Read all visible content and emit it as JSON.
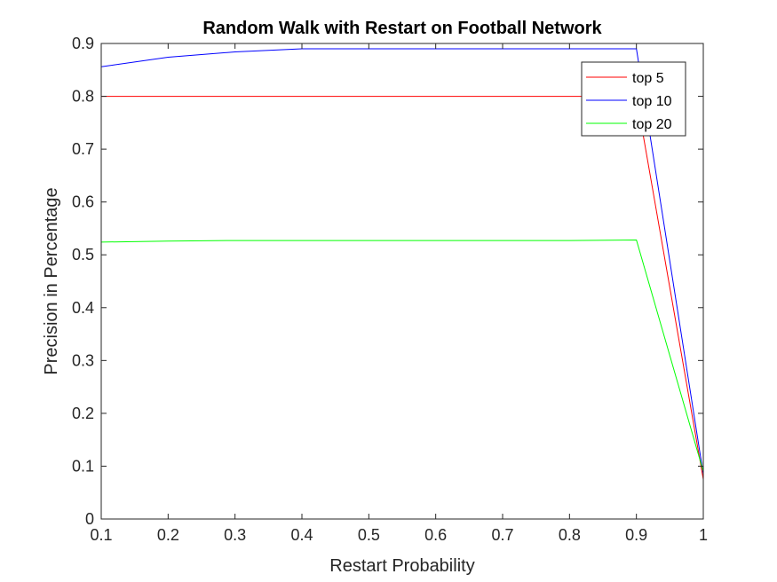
{
  "chart_data": {
    "type": "line",
    "title": "Random Walk with Restart on Football Network",
    "xlabel": "Restart Probability",
    "ylabel": "Precision in Percentage",
    "xlim": [
      0.1,
      1
    ],
    "ylim": [
      0,
      0.9
    ],
    "xticks": [
      "0.1",
      "0.2",
      "0.3",
      "0.4",
      "0.5",
      "0.6",
      "0.7",
      "0.8",
      "0.9",
      "1"
    ],
    "yticks": [
      "0",
      "0.1",
      "0.2",
      "0.3",
      "0.4",
      "0.5",
      "0.6",
      "0.7",
      "0.8",
      "0.9"
    ],
    "grid": false,
    "legend_position": "top-right",
    "x": [
      0.1,
      0.2,
      0.3,
      0.4,
      0.5,
      0.6,
      0.7,
      0.8,
      0.9,
      1.0
    ],
    "series": [
      {
        "name": "top 5",
        "color": "#ff0000",
        "values": [
          0.8,
          0.8,
          0.8,
          0.8,
          0.8,
          0.8,
          0.8,
          0.8,
          0.8,
          0.075
        ]
      },
      {
        "name": "top 10",
        "color": "#0000ff",
        "values": [
          0.856,
          0.874,
          0.884,
          0.89,
          0.89,
          0.89,
          0.89,
          0.89,
          0.89,
          0.085
        ]
      },
      {
        "name": "top 20",
        "color": "#00ff00",
        "values": [
          0.524,
          0.526,
          0.527,
          0.527,
          0.527,
          0.527,
          0.527,
          0.527,
          0.528,
          0.09
        ]
      }
    ]
  }
}
